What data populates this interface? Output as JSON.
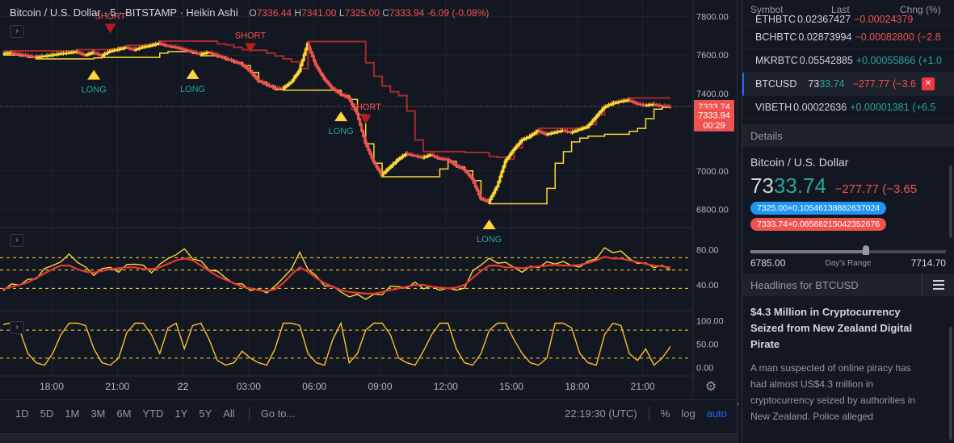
{
  "legend": {
    "symbol": "Bitcoin / U.S. Dollar · 5 · BITSTAMP · Heikin Ashi",
    "ohlc": [
      {
        "k": "O",
        "v": "7336.44"
      },
      {
        "k": "H",
        "v": "7341.00"
      },
      {
        "k": "L",
        "v": "7325.00"
      },
      {
        "k": "C",
        "v": "7333.94"
      }
    ],
    "change": "-6.09 (-0.08%)"
  },
  "chart": {
    "price_labels": [
      {
        "text": "7333.74",
        "price": 7333.74,
        "color": "#ef5350"
      },
      {
        "text": "7333.94",
        "price": 7290,
        "color": "#ef5350"
      },
      {
        "text": "00:29",
        "price": 7238,
        "color": "#ef5350"
      }
    ],
    "signals": [
      {
        "type": "long",
        "label": "LONG",
        "t": 0.13
      },
      {
        "type": "short",
        "label": "SHORT",
        "t": 0.155
      },
      {
        "type": "long",
        "label": "LONG",
        "t": 0.28
      },
      {
        "type": "short",
        "label": "SHORT",
        "t": 0.365
      },
      {
        "type": "long",
        "label": "LONG",
        "t": 0.507
      },
      {
        "type": "short",
        "label": "SHORT",
        "t": 0.545
      },
      {
        "type": "long",
        "label": "LONG",
        "t": 0.73
      }
    ],
    "colors": {
      "up": "#fdd835",
      "down": "#ef5350",
      "band_upper": "#a52a2a",
      "band_lower": "#fdd835"
    }
  },
  "chart_data": [
    {
      "type": "line",
      "y_ticks": [
        "7800.00",
        "7600.00",
        "7400.00",
        "7000.00",
        "6800.00"
      ],
      "y_tick_values": [
        7800,
        7600,
        7400,
        7000,
        6800
      ],
      "ylim": [
        6740,
        7860
      ],
      "x_ticks": [
        "18:00",
        "21:00",
        "22",
        "03:00",
        "06:00",
        "09:00",
        "12:00",
        "15:00",
        "18:00",
        "21:00"
      ],
      "series": [
        {
          "values": [
            7610,
            7612,
            7605,
            7598,
            7590,
            7595,
            7601,
            7608,
            7612,
            7618,
            7600,
            7615,
            7598,
            7620,
            7630,
            7640,
            7628,
            7642,
            7650,
            7662,
            7648,
            7642,
            7630,
            7618,
            7606,
            7615,
            7600,
            7585,
            7570,
            7555,
            7520,
            7470,
            7450,
            7430,
            7428,
            7460,
            7520,
            7660,
            7550,
            7480,
            7430,
            7400,
            7380,
            7300,
            7150,
            7050,
            6980,
            7020,
            7060,
            7090,
            7080,
            7070,
            7085,
            7065,
            7060,
            7030,
            7010,
            6960,
            6860,
            6840,
            6920,
            7050,
            7110,
            7160,
            7180,
            7210,
            7190,
            7200,
            7210,
            7200,
            7215,
            7230,
            7280,
            7330,
            7350,
            7360,
            7368,
            7350,
            7340,
            7345,
            7338,
            7334
          ]
        }
      ]
    },
    {
      "type": "line",
      "y_ticks": [
        "80.00",
        "40.00"
      ],
      "y_tick_values": [
        80,
        40
      ],
      "ylim": [
        18,
        98
      ],
      "series": [
        {
          "values": [
            37,
            40,
            42,
            44,
            48,
            55,
            62,
            70,
            74,
            68,
            58,
            52,
            55,
            60,
            58,
            62,
            66,
            60,
            55,
            60,
            70,
            78,
            80,
            72,
            65,
            58,
            52,
            48,
            45,
            40,
            36,
            33,
            32,
            35,
            48,
            62,
            76,
            60,
            48,
            40,
            35,
            32,
            30,
            28,
            26,
            27,
            30,
            35,
            38,
            40,
            42,
            38,
            36,
            35,
            33,
            34,
            40,
            55,
            65,
            68,
            66,
            62,
            60,
            58,
            60,
            62,
            64,
            65,
            63,
            62,
            64,
            66,
            72,
            80,
            78,
            75,
            70,
            68,
            64,
            62,
            60,
            58
          ]
        },
        {
          "values": [
            35,
            38,
            40,
            43,
            48,
            53,
            58,
            62,
            62,
            58,
            55,
            54,
            56,
            58,
            59,
            60,
            60,
            58,
            58,
            60,
            64,
            68,
            70,
            68,
            62,
            56,
            50,
            46,
            42,
            38,
            36,
            34,
            33,
            35,
            42,
            52,
            60,
            55,
            48,
            42,
            38,
            34,
            32,
            31,
            30,
            30,
            32,
            34,
            36,
            38,
            40,
            40,
            38,
            37,
            36,
            37,
            40,
            48,
            56,
            62,
            62,
            60,
            60,
            59,
            60,
            61,
            62,
            63,
            62,
            62,
            63,
            65,
            68,
            72,
            70,
            70,
            68,
            66,
            64,
            62,
            61,
            60
          ]
        }
      ],
      "reference_lines": [
        71,
        57,
        36
      ]
    },
    {
      "type": "line",
      "y_ticks": [
        "100.00",
        "50.00",
        "0.00"
      ],
      "y_tick_values": [
        100,
        50,
        0
      ],
      "ylim": [
        -8,
        108
      ],
      "series": [
        {
          "values": [
            92,
            96,
            80,
            30,
            10,
            5,
            30,
            70,
            95,
            95,
            90,
            40,
            10,
            5,
            20,
            75,
            95,
            95,
            70,
            30,
            85,
            95,
            40,
            90,
            95,
            60,
            15,
            5,
            10,
            35,
            20,
            10,
            5,
            40,
            95,
            95,
            90,
            30,
            10,
            5,
            60,
            95,
            10,
            30,
            80,
            95,
            95,
            70,
            20,
            10,
            5,
            35,
            70,
            95,
            95,
            40,
            10,
            5,
            30,
            80,
            95,
            95,
            60,
            30,
            10,
            5,
            20,
            95,
            95,
            85,
            30,
            10,
            5,
            70,
            95,
            90,
            30,
            15,
            40,
            5,
            20,
            45
          ]
        }
      ],
      "reference_lines": [
        80,
        20
      ]
    }
  ],
  "bottombar": {
    "timeframes": [
      "1D",
      "5D",
      "1M",
      "3M",
      "6M",
      "YTD",
      "1Y",
      "5Y",
      "All"
    ],
    "goto": "Go to...",
    "time": "22:19:30 (UTC)",
    "percent": "%",
    "log": "log",
    "auto": "auto"
  },
  "watchlist": {
    "headers": [
      "Symbol",
      "Last",
      "Chng (%)"
    ],
    "rows": [
      {
        "sym": "ETHBTC",
        "last": "0.02367427",
        "chg": "−0.00024379",
        "chg_dir": "neg",
        "partial": true
      },
      {
        "sym": "BCHBTC",
        "last": "0.02873994",
        "chg": "−0.00082800",
        "pct": "(−2.8",
        "chg_dir": "neg"
      },
      {
        "sym": "MKRBTC",
        "last": "0.05542885",
        "chg": "+0.00055866",
        "pct": "(+1.0",
        "chg_dir": "pos"
      },
      {
        "sym": "BTCUSD",
        "last_a": "73",
        "last_b": "33.74",
        "chg": "−277.77",
        "pct": "(−3.6",
        "chg_dir": "neg",
        "active": true
      },
      {
        "sym": "VIBETH",
        "last": "0.00022636",
        "chg": "+0.00001381",
        "pct": "(+6.5",
        "chg_dir": "pos"
      }
    ]
  },
  "details": {
    "header": "Details",
    "title": "Bitcoin / U.S. Dollar",
    "price_a": "73",
    "price_b": "33.74",
    "change": "−277.77 (−3.65",
    "bid": "7325.00×0.10546138882637024",
    "ask": "7333.74×0.06568215042352676",
    "range_low": "6785.00",
    "range_label": "Day's Range",
    "range_high": "7714.70",
    "range_position": 0.59
  },
  "headlines": {
    "header": "Headlines for BTCUSD",
    "title": "$4.3 Million in Cryptocurrency Seized from New Zealand Digital Pirate",
    "body": "A man suspected of online piracy has had almost US$4.3 million in cryptocurrency seized by authorities in New Zealand. Police alleged"
  }
}
